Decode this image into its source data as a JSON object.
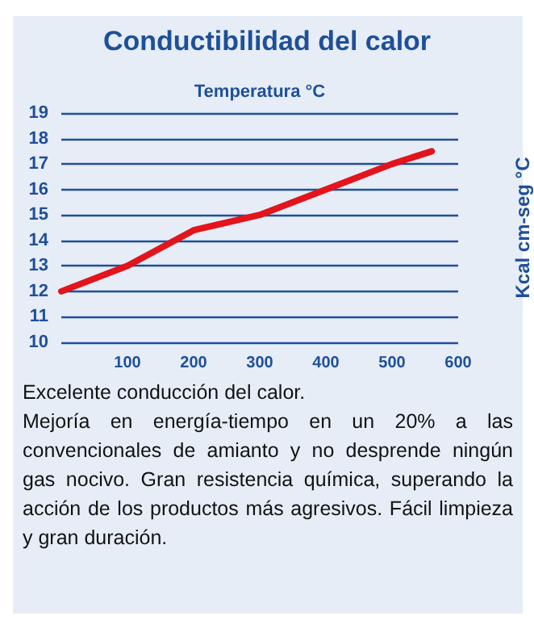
{
  "chart_data": {
    "type": "line",
    "title": "Conductibilidad del calor",
    "xlabel": "Temperatura °C",
    "ylabel": "Kcal cm-seg °C",
    "x": [
      0,
      100,
      200,
      300,
      400,
      500,
      560
    ],
    "series": [
      {
        "color": "#e3141b",
        "values": [
          12,
          13,
          14.4,
          15,
          16,
          17,
          17.5
        ]
      }
    ],
    "xlim": [
      0,
      600
    ],
    "xticks": [
      100,
      200,
      300,
      400,
      500,
      600
    ],
    "ylim": [
      10,
      19
    ],
    "yticks": [
      10,
      11,
      12,
      13,
      14,
      15,
      16,
      17,
      18,
      19
    ],
    "grid": "y",
    "marker": "none",
    "line_style": "solid",
    "annotations": [
      "Excelente conducción del calor.",
      "Mejoría en energía-tiempo en un 20% a las convencionales de amianto y no desprende ningún gas nocivo. Gran resistencia química, superando la acción de los productos más agresivos. Fácil limpieza y gran duración."
    ]
  }
}
